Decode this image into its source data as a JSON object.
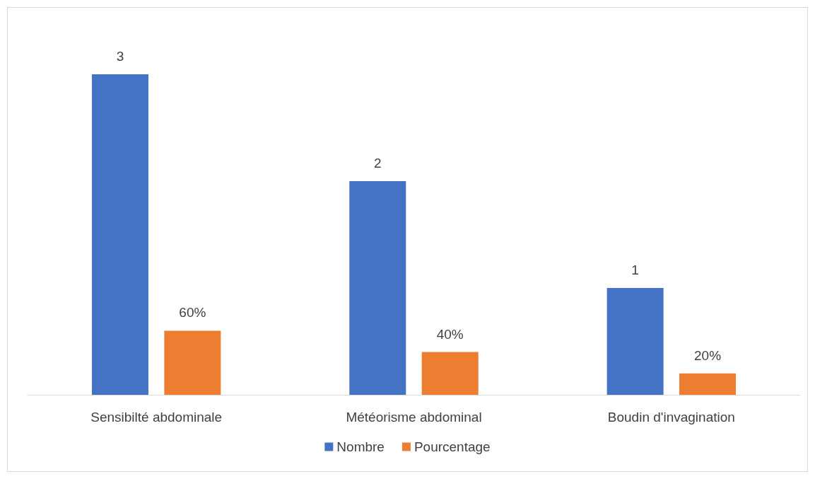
{
  "chart_data": {
    "type": "bar",
    "categories": [
      "Sensibilté abdominale",
      "Météorisme abdominal",
      "Boudin d'invagination"
    ],
    "series": [
      {
        "name": "Nombre",
        "color": "#4472c4",
        "values": [
          3,
          2,
          1
        ],
        "value_labels": [
          "3",
          "2",
          "1"
        ]
      },
      {
        "name": "Pourcentage",
        "color": "#ed7d31",
        "values": [
          0.6,
          0.4,
          0.2
        ],
        "value_labels": [
          "60%",
          "40%",
          "20%"
        ]
      }
    ],
    "tick_labels": "x",
    "legend": "bottom"
  }
}
